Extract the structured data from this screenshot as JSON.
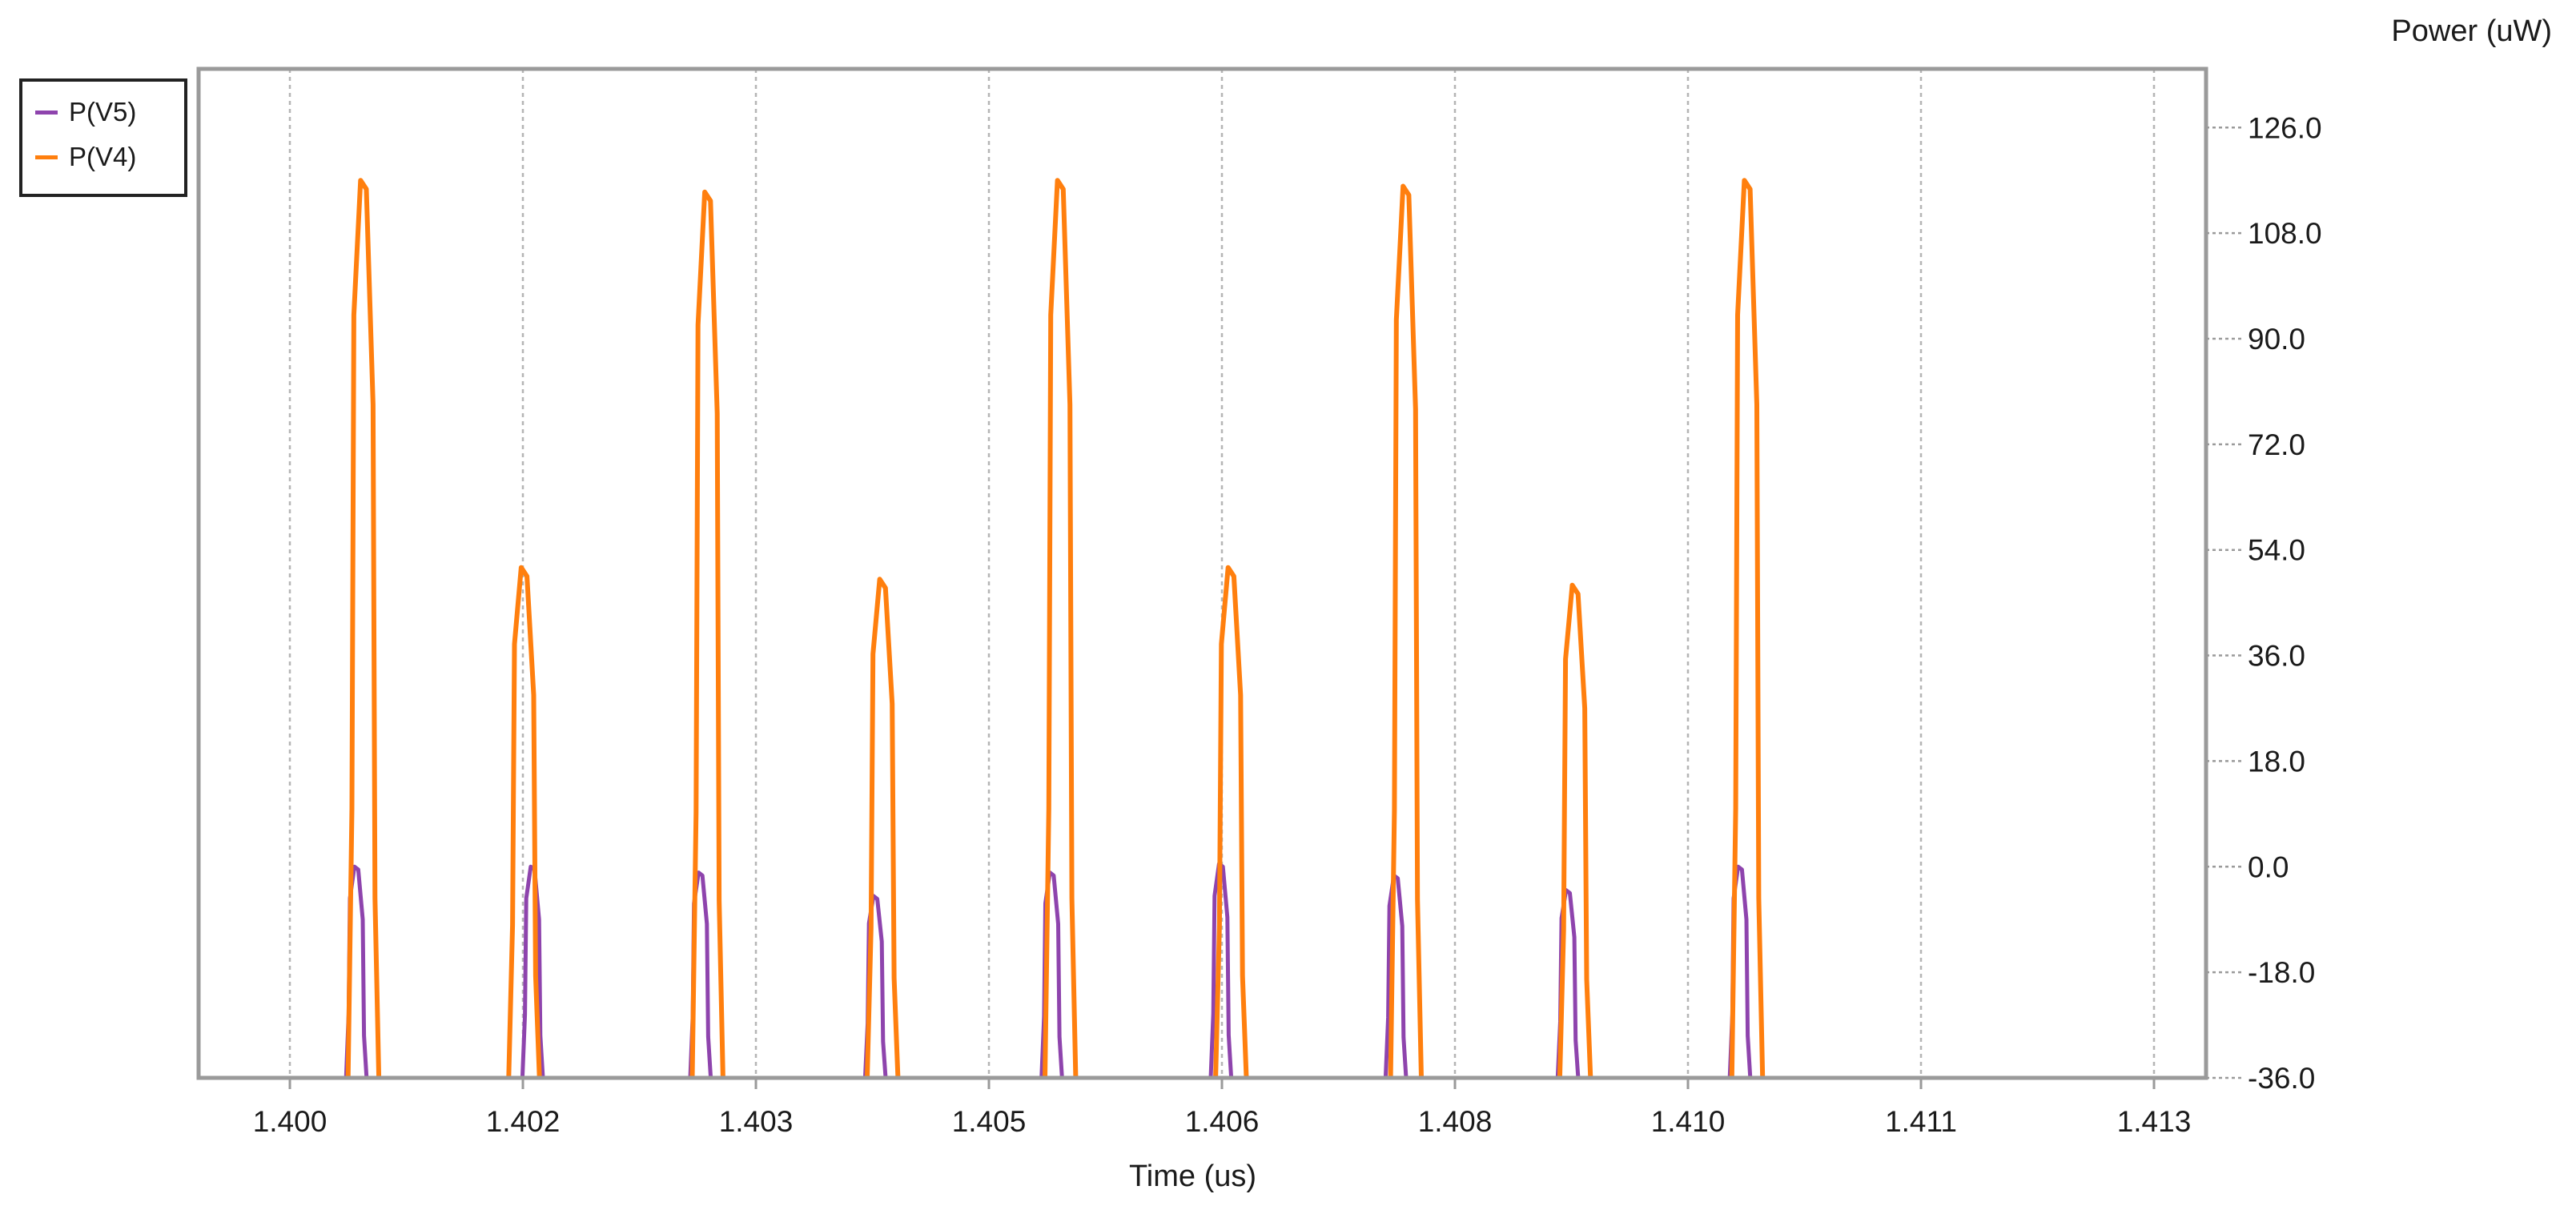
{
  "chart_data": {
    "type": "line",
    "xlabel": "Time (us)",
    "ylabel": "Power (uW)",
    "xlim": [
      1.3996,
      1.4136
    ],
    "ylim": [
      -36,
      136
    ],
    "x_tick_labels": [
      "1.400",
      "1.402",
      "1.403",
      "1.405",
      "1.406",
      "1.408",
      "1.410",
      "1.411",
      "1.413"
    ],
    "y_ticks": [
      -36,
      -18,
      0,
      18,
      36,
      54,
      72,
      90,
      108,
      126
    ],
    "y_tick_labels": [
      "-36.0",
      "-18.0",
      "0.0",
      "18.0",
      "36.0",
      "54.0",
      "72.0",
      "90.0",
      "108.0",
      "126.0"
    ],
    "grid": true,
    "legend_position": "top-left",
    "series": [
      {
        "name": "P(V5)",
        "color": "#8e44ad",
        "pulses": [
          {
            "x": 1.4007,
            "peak": 0.0
          },
          {
            "x": 1.40193,
            "peak": 0.0
          },
          {
            "x": 1.4031,
            "peak": -1.0
          },
          {
            "x": 1.40432,
            "peak": -5.0
          },
          {
            "x": 1.40555,
            "peak": -1.0
          },
          {
            "x": 1.40673,
            "peak": 0.5
          },
          {
            "x": 1.40795,
            "peak": -1.5
          },
          {
            "x": 1.40915,
            "peak": -4.0
          },
          {
            "x": 1.41035,
            "peak": 0.0
          }
        ]
      },
      {
        "name": "P(V4)",
        "color": "#ff7f0e",
        "pulses": [
          {
            "x": 1.40075,
            "peak": 117.0
          },
          {
            "x": 1.40187,
            "peak": 51.0
          },
          {
            "x": 1.40315,
            "peak": 115.0
          },
          {
            "x": 1.40437,
            "peak": 49.0
          },
          {
            "x": 1.40561,
            "peak": 117.0
          },
          {
            "x": 1.4068,
            "peak": 51.0
          },
          {
            "x": 1.40802,
            "peak": 116.0
          },
          {
            "x": 1.4092,
            "peak": 48.0
          },
          {
            "x": 1.4104,
            "peak": 117.0
          }
        ]
      }
    ]
  }
}
